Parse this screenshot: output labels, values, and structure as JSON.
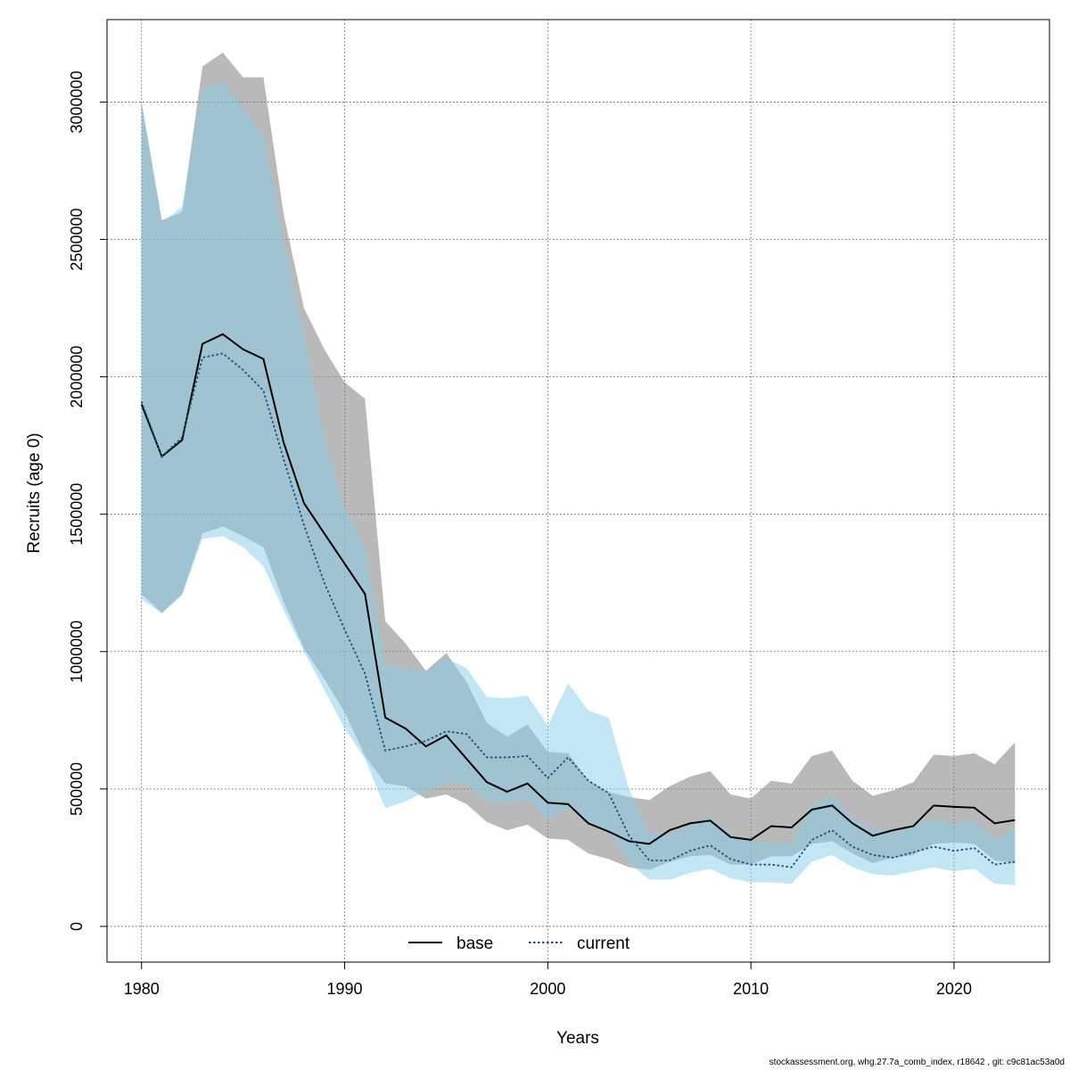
{
  "chart_data": {
    "type": "area",
    "xlabel": "Years",
    "ylabel": "Recruits (age 0)",
    "xlim": [
      1978.3,
      2024.7
    ],
    "ylim": [
      -130000,
      3300000
    ],
    "x_ticks": [
      1980,
      1990,
      2000,
      2010,
      2020
    ],
    "y_ticks": [
      0,
      500000,
      1000000,
      1500000,
      2000000,
      2500000,
      3000000
    ],
    "y_tick_labels": [
      "0",
      "500000",
      "1000000",
      "1500000",
      "2000000",
      "2500000",
      "3000000"
    ],
    "grid": true,
    "legend_position": "bottom-center",
    "x": [
      1980,
      1981,
      1982,
      1983,
      1984,
      1985,
      1986,
      1987,
      1988,
      1989,
      1990,
      1991,
      1992,
      1993,
      1994,
      1995,
      1996,
      1997,
      1998,
      1999,
      2000,
      2001,
      2002,
      2003,
      2004,
      2005,
      2006,
      2007,
      2008,
      2009,
      2010,
      2011,
      2012,
      2013,
      2014,
      2015,
      2016,
      2017,
      2018,
      2019,
      2020,
      2021,
      2022,
      2023
    ],
    "series": [
      {
        "name": "base",
        "color": "#000000",
        "band_color": "#7f7f7f",
        "line_style": "solid",
        "values": [
          1900000,
          1710000,
          1770000,
          2120000,
          2155000,
          2100000,
          2065000,
          1760000,
          1540000,
          1430000,
          1320000,
          1210000,
          760000,
          720000,
          655000,
          695000,
          610000,
          525000,
          490000,
          520000,
          450000,
          445000,
          375000,
          345000,
          310000,
          300000,
          350000,
          375000,
          385000,
          325000,
          315000,
          365000,
          360000,
          425000,
          440000,
          375000,
          330000,
          350000,
          365000,
          440000,
          435000,
          432000,
          375000,
          387000
        ],
        "lower": [
          1210000,
          1140000,
          1210000,
          1430000,
          1455000,
          1420000,
          1380000,
          1180000,
          1010000,
          900000,
          780000,
          620000,
          520000,
          510000,
          465000,
          480000,
          445000,
          380000,
          350000,
          370000,
          320000,
          315000,
          265000,
          245000,
          215000,
          205000,
          235000,
          255000,
          260000,
          225000,
          225000,
          255000,
          255000,
          300000,
          310000,
          265000,
          230000,
          250000,
          260000,
          300000,
          305000,
          300000,
          240000,
          230000
        ],
        "upper": [
          3000000,
          2570000,
          2600000,
          3130000,
          3180000,
          3090000,
          3090000,
          2590000,
          2250000,
          2100000,
          1980000,
          1920000,
          1110000,
          1030000,
          930000,
          995000,
          890000,
          740000,
          690000,
          735000,
          635000,
          630000,
          530000,
          490000,
          470000,
          460000,
          510000,
          545000,
          565000,
          480000,
          465000,
          530000,
          520000,
          620000,
          640000,
          530000,
          475000,
          495000,
          525000,
          625000,
          620000,
          630000,
          590000,
          670000
        ]
      },
      {
        "name": "current",
        "color": "#1a4f7a",
        "band_color": "#87ceeb",
        "line_style": "dotted",
        "values": [
          1910000,
          1710000,
          1780000,
          2070000,
          2085000,
          2025000,
          1950000,
          1700000,
          1460000,
          1250000,
          1080000,
          920000,
          640000,
          655000,
          675000,
          710000,
          700000,
          615000,
          615000,
          620000,
          540000,
          615000,
          530000,
          485000,
          330000,
          240000,
          240000,
          275000,
          295000,
          245000,
          225000,
          225000,
          215000,
          315000,
          350000,
          290000,
          260000,
          250000,
          270000,
          290000,
          275000,
          285000,
          225000,
          235000
        ],
        "lower": [
          1190000,
          1140000,
          1205000,
          1410000,
          1420000,
          1380000,
          1310000,
          1150000,
          1000000,
          860000,
          720000,
          610000,
          430000,
          455000,
          490000,
          525000,
          515000,
          455000,
          455000,
          460000,
          390000,
          430000,
          380000,
          345000,
          230000,
          170000,
          170000,
          195000,
          210000,
          175000,
          160000,
          160000,
          155000,
          235000,
          260000,
          215000,
          190000,
          185000,
          200000,
          215000,
          200000,
          210000,
          155000,
          150000
        ],
        "upper": [
          3000000,
          2560000,
          2620000,
          3050000,
          3070000,
          2980000,
          2880000,
          2500000,
          2150000,
          1780000,
          1520000,
          1380000,
          950000,
          935000,
          930000,
          975000,
          940000,
          835000,
          830000,
          840000,
          730000,
          885000,
          785000,
          760000,
          500000,
          340000,
          330000,
          370000,
          400000,
          335000,
          310000,
          305000,
          300000,
          440000,
          475000,
          395000,
          355000,
          340000,
          370000,
          390000,
          370000,
          385000,
          315000,
          360000
        ]
      }
    ]
  },
  "footer_text": "stockassessment.org, whg.27.7a_comb_index, r18642 , git: c9c81ac53a0d"
}
